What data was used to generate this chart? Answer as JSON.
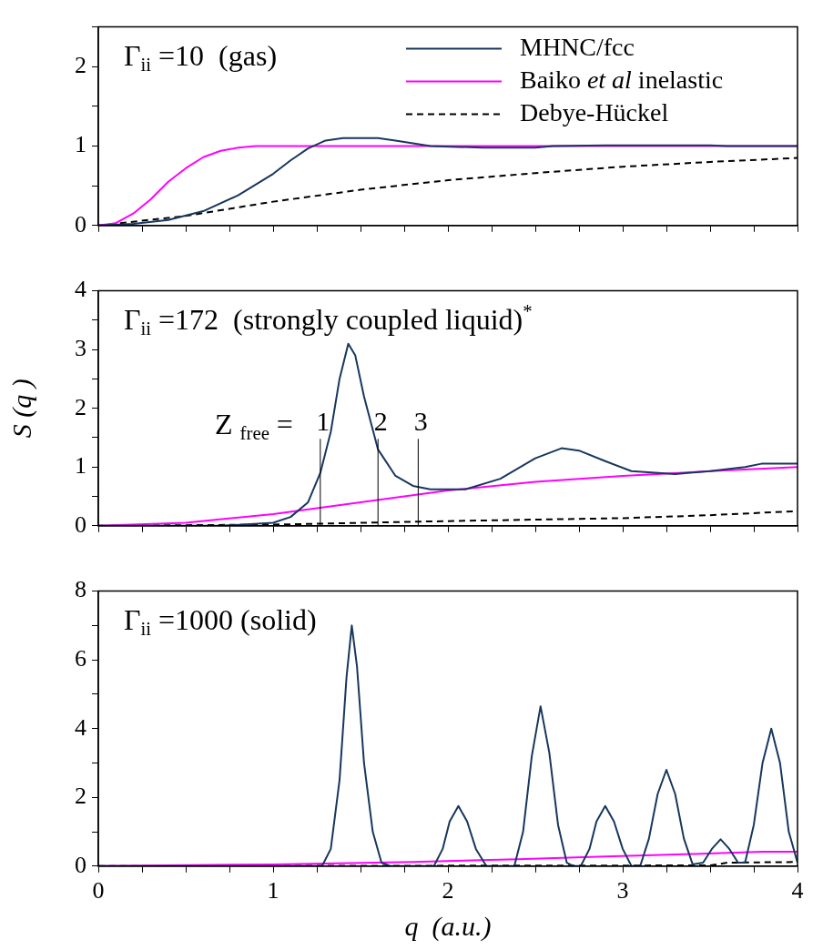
{
  "chart_data": [
    {
      "type": "line",
      "xlim": [
        0,
        4
      ],
      "ylim": [
        0,
        2.5
      ],
      "xticks": [
        0,
        {
          "value": 0.25,
          "label": null
        },
        {
          "value": 0.5,
          "label": null
        },
        {
          "value": 0.75,
          "label": null
        },
        {
          "value": 1,
          "label": null
        },
        {
          "value": 1.25,
          "label": null
        },
        {
          "value": 1.5,
          "label": null
        },
        {
          "value": 1.75,
          "label": null
        },
        {
          "value": 2,
          "label": null
        },
        {
          "value": 2.25,
          "label": null
        },
        {
          "value": 2.5,
          "label": null
        },
        {
          "value": 2.75,
          "label": null
        },
        {
          "value": 3,
          "label": null
        },
        {
          "value": 3.25,
          "label": null
        },
        {
          "value": 3.5,
          "label": null
        },
        {
          "value": 3.75,
          "label": null
        },
        {
          "value": 4,
          "label": null
        }
      ],
      "yticks": [
        0,
        {
          "value": 0.5,
          "label": null
        },
        1,
        {
          "value": 1.5,
          "label": null
        },
        2,
        {
          "value": 2.5,
          "label": null
        }
      ],
      "tick_labels": "y",
      "grid": false,
      "legend": "top right",
      "annotations": [
        "Γ$_{ii}$ =10  (gas)"
      ],
      "series": [
        {
          "name": "MHNC/fcc",
          "color": "#17375e",
          "x": [
            0,
            0.2,
            0.4,
            0.6,
            0.8,
            1.0,
            1.1,
            1.2,
            1.3,
            1.4,
            1.6,
            1.7,
            1.9,
            2.2,
            2.5,
            2.6,
            2.9,
            3.5,
            3.6,
            4
          ],
          "values": [
            0,
            0.02,
            0.07,
            0.18,
            0.38,
            0.65,
            0.82,
            0.97,
            1.07,
            1.1,
            1.1,
            1.07,
            1.0,
            0.98,
            0.98,
            1.0,
            1.01,
            1.01,
            1.0,
            1.0
          ]
        },
        {
          "name": "Baiko $^{}$et al$^{}$ inelastic",
          "color": "#ff00ff",
          "x": [
            0,
            0.1,
            0.2,
            0.3,
            0.4,
            0.5,
            0.6,
            0.7,
            0.8,
            0.9,
            4
          ],
          "values": [
            0,
            0.03,
            0.15,
            0.33,
            0.55,
            0.72,
            0.86,
            0.94,
            0.98,
            1.0,
            1.0
          ]
        },
        {
          "name": "Debye-Hückel",
          "color": "#000000",
          "line_style": "dashed",
          "x": [
            0,
            0.5,
            1.0,
            1.5,
            2.0,
            2.5,
            3.0,
            3.5,
            4
          ],
          "values": [
            0,
            0.12,
            0.3,
            0.45,
            0.57,
            0.66,
            0.74,
            0.8,
            0.85
          ]
        }
      ]
    },
    {
      "type": "line",
      "xlim": [
        0,
        4
      ],
      "ylim": [
        0,
        4
      ],
      "xticks": [
        0,
        {
          "value": 0.25,
          "label": null
        },
        {
          "value": 0.5,
          "label": null
        },
        {
          "value": 0.75,
          "label": null
        },
        {
          "value": 1,
          "label": null
        },
        {
          "value": 1.25,
          "label": null
        },
        {
          "value": 1.5,
          "label": null
        },
        {
          "value": 1.75,
          "label": null
        },
        {
          "value": 2,
          "label": null
        },
        {
          "value": 2.25,
          "label": null
        },
        {
          "value": 2.5,
          "label": null
        },
        {
          "value": 2.75,
          "label": null
        },
        {
          "value": 3,
          "label": null
        },
        {
          "value": 3.25,
          "label": null
        },
        {
          "value": 3.5,
          "label": null
        },
        {
          "value": 3.75,
          "label": null
        },
        {
          "value": 4,
          "label": null
        }
      ],
      "yticks": [
        0,
        {
          "value": 0.5,
          "label": null
        },
        1,
        {
          "value": 1.5,
          "label": null
        },
        2,
        {
          "value": 2.5,
          "label": null
        },
        3,
        {
          "value": 3.5,
          "label": null
        },
        4
      ],
      "tick_labels": "y",
      "grid": false,
      "ylabel": "S (q )",
      "annotations": [
        "Γ$_{ii}$ =172  (strongly coupled liquid)$^{*}$",
        "Z $_{free}$ =",
        {
          "text": "1",
          "x": 1.27,
          "y": 1.5
        },
        {
          "text": "2",
          "x": 1.6,
          "y": 1.5
        },
        {
          "text": "3",
          "x": 1.83,
          "y": 1.5
        }
      ],
      "ref_lines": [
        {
          "axis": "x",
          "value": 1.27,
          "color": "#000000"
        },
        {
          "axis": "x",
          "value": 1.6,
          "color": "#000000"
        },
        {
          "axis": "x",
          "value": 1.83,
          "color": "#000000"
        }
      ],
      "series": [
        {
          "color": "#17375e",
          "x": [
            0,
            0.7,
            1.0,
            1.1,
            1.2,
            1.27,
            1.33,
            1.38,
            1.43,
            1.47,
            1.52,
            1.6,
            1.7,
            1.8,
            1.9,
            2.1,
            2.3,
            2.5,
            2.65,
            2.75,
            2.9,
            3.05,
            3.3,
            3.5,
            3.7,
            3.8,
            4
          ],
          "values": [
            0,
            0,
            0.05,
            0.15,
            0.4,
            0.9,
            1.6,
            2.5,
            3.1,
            2.9,
            2.2,
            1.3,
            0.85,
            0.68,
            0.62,
            0.62,
            0.8,
            1.15,
            1.32,
            1.28,
            1.1,
            0.93,
            0.88,
            0.93,
            1.0,
            1.06,
            1.06
          ]
        },
        {
          "color": "#ff00ff",
          "x": [
            0,
            0.5,
            1.0,
            1.5,
            2.0,
            2.5,
            3.0,
            3.5,
            4
          ],
          "values": [
            0,
            0.05,
            0.2,
            0.4,
            0.6,
            0.75,
            0.85,
            0.93,
            1.0
          ]
        },
        {
          "color": "#000000",
          "line_style": "dashed",
          "x": [
            0,
            1,
            2,
            3,
            3.5,
            4
          ],
          "values": [
            0,
            0.02,
            0.08,
            0.13,
            0.18,
            0.25
          ]
        }
      ]
    },
    {
      "type": "line",
      "xlim": [
        0,
        4
      ],
      "ylim": [
        0,
        8
      ],
      "xticks": [
        0,
        {
          "value": 0.25,
          "label": null
        },
        {
          "value": 0.5,
          "label": null
        },
        {
          "value": 0.75,
          "label": null
        },
        1,
        {
          "value": 1.25,
          "label": null
        },
        {
          "value": 1.5,
          "label": null
        },
        {
          "value": 1.75,
          "label": null
        },
        2,
        {
          "value": 2.25,
          "label": null
        },
        {
          "value": 2.5,
          "label": null
        },
        {
          "value": 2.75,
          "label": null
        },
        3,
        {
          "value": 3.25,
          "label": null
        },
        {
          "value": 3.5,
          "label": null
        },
        {
          "value": 3.75,
          "label": null
        },
        4
      ],
      "yticks": [
        0,
        {
          "value": 1,
          "label": null
        },
        2,
        {
          "value": 3,
          "label": null
        },
        4,
        {
          "value": 5,
          "label": null
        },
        6,
        {
          "value": 7,
          "label": null
        },
        8
      ],
      "grid": false,
      "xlabel": "q  (a.u.)",
      "annotations": [
        "Γ$_{ii}$ =1000 (solid)"
      ],
      "series": [
        {
          "color": "#17375e",
          "x": [
            0,
            1.28,
            1.33,
            1.38,
            1.42,
            1.45,
            1.48,
            1.52,
            1.57,
            1.62,
            1.67,
            1.92,
            1.97,
            2.01,
            2.06,
            2.11,
            2.16,
            2.22,
            2.38,
            2.43,
            2.48,
            2.53,
            2.58,
            2.63,
            2.68,
            2.72,
            2.76,
            2.81,
            2.85,
            2.9,
            2.95,
            3.0,
            3.05,
            3.1,
            3.15,
            3.2,
            3.25,
            3.3,
            3.35,
            3.4,
            3.46,
            3.51,
            3.56,
            3.61,
            3.66,
            3.7,
            3.75,
            3.8,
            3.85,
            3.9,
            3.95,
            4.0
          ],
          "values": [
            0,
            0,
            0.5,
            2.5,
            5.5,
            7.0,
            5.8,
            3,
            1,
            0.1,
            0,
            0,
            0.5,
            1.3,
            1.75,
            1.3,
            0.5,
            0,
            0,
            1.0,
            3.2,
            4.65,
            3.3,
            1.2,
            0.1,
            0,
            0,
            0.5,
            1.3,
            1.75,
            1.3,
            0.5,
            0,
            0,
            0.8,
            2.1,
            2.8,
            2.1,
            0.8,
            0.05,
            0.1,
            0.5,
            0.78,
            0.5,
            0.1,
            0.1,
            1.2,
            3.0,
            4.0,
            3.0,
            1.0,
            0.1
          ]
        },
        {
          "color": "#ff00ff",
          "x": [
            0,
            1.0,
            1.8,
            2.4,
            2.9,
            3.4,
            3.8,
            4
          ],
          "values": [
            0,
            0.05,
            0.12,
            0.2,
            0.28,
            0.35,
            0.42,
            0.42
          ]
        },
        {
          "color": "#000000",
          "line_style": "dashed",
          "x": [
            0,
            3.5,
            3.6,
            4
          ],
          "values": [
            0,
            0.02,
            0.1,
            0.12
          ]
        }
      ]
    }
  ]
}
